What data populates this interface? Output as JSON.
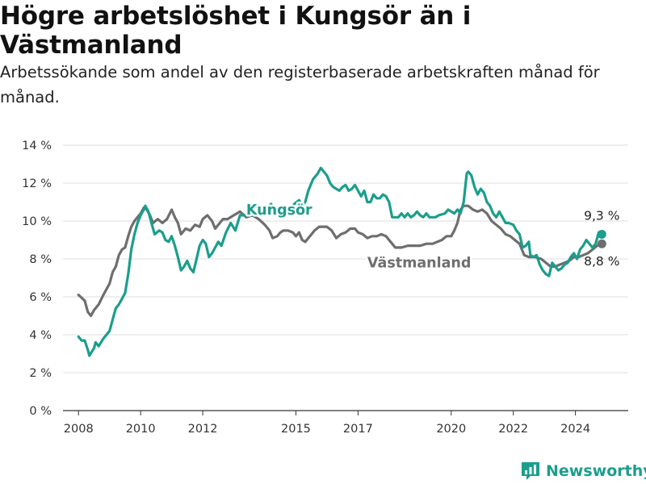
{
  "title": "Högre arbetslöshet i Kungsör än i Västmanland",
  "subtitle": "Arbetssökande som andel av den registerbaserade arbetskraften månad för månad.",
  "brand": "Newsworthy",
  "colors": {
    "kungsor": "#1b9e8c",
    "vastmanland": "#6e6e6e",
    "grid": "#dcdcdc",
    "axis": "#333333",
    "brand": "#1b9e8c"
  },
  "chart_data": {
    "type": "line",
    "x_unit": "year (monthly data)",
    "xlim": [
      2007.5,
      2025.7
    ],
    "ylim": [
      0,
      14
    ],
    "y_ticks": [
      {
        "value": 0,
        "label": "0 %"
      },
      {
        "value": 2,
        "label": "2 %"
      },
      {
        "value": 4,
        "label": "4 %"
      },
      {
        "value": 6,
        "label": "6 %"
      },
      {
        "value": 8,
        "label": "8 %"
      },
      {
        "value": 10,
        "label": "10 %"
      },
      {
        "value": 12,
        "label": "12 %"
      },
      {
        "value": 14,
        "label": "14 %"
      }
    ],
    "x_ticks": [
      {
        "value": 2008,
        "label": "2008"
      },
      {
        "value": 2010,
        "label": "2010"
      },
      {
        "value": 2012,
        "label": "2012"
      },
      {
        "value": 2015,
        "label": "2015"
      },
      {
        "value": 2017,
        "label": "2017"
      },
      {
        "value": 2020,
        "label": "2020"
      },
      {
        "value": 2022,
        "label": "2022"
      },
      {
        "value": 2024,
        "label": "2024"
      }
    ],
    "grid": true,
    "series": [
      {
        "name": "Kungsör",
        "color": "#1b9e8c",
        "label": "Kungsör",
        "end_label": "9,3 %",
        "end_value": 9.3,
        "points": [
          [
            2008.0,
            3.9
          ],
          [
            2008.1,
            3.7
          ],
          [
            2008.2,
            3.7
          ],
          [
            2008.3,
            3.2
          ],
          [
            2008.35,
            2.9
          ],
          [
            2008.5,
            3.3
          ],
          [
            2008.55,
            3.6
          ],
          [
            2008.65,
            3.4
          ],
          [
            2008.8,
            3.8
          ],
          [
            2008.9,
            4.0
          ],
          [
            2009.0,
            4.2
          ],
          [
            2009.1,
            4.8
          ],
          [
            2009.2,
            5.4
          ],
          [
            2009.3,
            5.6
          ],
          [
            2009.4,
            5.9
          ],
          [
            2009.5,
            6.2
          ],
          [
            2009.6,
            7.2
          ],
          [
            2009.7,
            8.5
          ],
          [
            2009.8,
            9.3
          ],
          [
            2009.9,
            9.9
          ],
          [
            2010.0,
            10.3
          ],
          [
            2010.1,
            10.6
          ],
          [
            2010.15,
            10.8
          ],
          [
            2010.25,
            10.5
          ],
          [
            2010.35,
            9.9
          ],
          [
            2010.45,
            9.3
          ],
          [
            2010.6,
            9.5
          ],
          [
            2010.7,
            9.4
          ],
          [
            2010.8,
            9.0
          ],
          [
            2010.9,
            8.9
          ],
          [
            2011.0,
            9.2
          ],
          [
            2011.1,
            8.7
          ],
          [
            2011.2,
            8.1
          ],
          [
            2011.3,
            7.4
          ],
          [
            2011.4,
            7.6
          ],
          [
            2011.5,
            7.9
          ],
          [
            2011.6,
            7.5
          ],
          [
            2011.7,
            7.3
          ],
          [
            2011.8,
            8.0
          ],
          [
            2011.9,
            8.7
          ],
          [
            2012.0,
            9.0
          ],
          [
            2012.1,
            8.8
          ],
          [
            2012.2,
            8.1
          ],
          [
            2012.3,
            8.3
          ],
          [
            2012.4,
            8.6
          ],
          [
            2012.5,
            8.9
          ],
          [
            2012.6,
            8.7
          ],
          [
            2012.75,
            9.4
          ],
          [
            2012.9,
            9.9
          ],
          [
            2013.05,
            9.5
          ],
          [
            2013.2,
            10.3
          ],
          [
            2013.45,
            10.3
          ],
          [
            2013.7,
            10.3
          ],
          [
            2014.0,
            10.6
          ],
          [
            2014.2,
            10.9
          ],
          [
            2014.35,
            10.4
          ],
          [
            2014.5,
            10.2
          ],
          [
            2014.6,
            10.5
          ],
          [
            2014.8,
            10.6
          ],
          [
            2014.95,
            10.9
          ],
          [
            2015.1,
            11.1
          ],
          [
            2015.2,
            10.8
          ],
          [
            2015.3,
            11.0
          ],
          [
            2015.4,
            11.6
          ],
          [
            2015.55,
            12.2
          ],
          [
            2015.7,
            12.5
          ],
          [
            2015.8,
            12.8
          ],
          [
            2015.9,
            12.6
          ],
          [
            2016.0,
            12.4
          ],
          [
            2016.1,
            12.0
          ],
          [
            2016.2,
            11.8
          ],
          [
            2016.3,
            11.7
          ],
          [
            2016.4,
            11.6
          ],
          [
            2016.5,
            11.8
          ],
          [
            2016.6,
            11.9
          ],
          [
            2016.7,
            11.6
          ],
          [
            2016.8,
            11.7
          ],
          [
            2016.9,
            11.9
          ],
          [
            2017.0,
            11.6
          ],
          [
            2017.1,
            11.3
          ],
          [
            2017.2,
            11.6
          ],
          [
            2017.3,
            11.0
          ],
          [
            2017.4,
            11.0
          ],
          [
            2017.5,
            11.4
          ],
          [
            2017.6,
            11.2
          ],
          [
            2017.7,
            11.2
          ],
          [
            2017.8,
            11.4
          ],
          [
            2017.9,
            11.3
          ],
          [
            2018.0,
            11.0
          ],
          [
            2018.1,
            10.2
          ],
          [
            2018.3,
            10.2
          ],
          [
            2018.4,
            10.4
          ],
          [
            2018.5,
            10.2
          ],
          [
            2018.6,
            10.4
          ],
          [
            2018.7,
            10.2
          ],
          [
            2018.8,
            10.3
          ],
          [
            2018.9,
            10.5
          ],
          [
            2019.0,
            10.3
          ],
          [
            2019.1,
            10.2
          ],
          [
            2019.2,
            10.4
          ],
          [
            2019.3,
            10.2
          ],
          [
            2019.5,
            10.2
          ],
          [
            2019.6,
            10.3
          ],
          [
            2019.8,
            10.4
          ],
          [
            2019.9,
            10.6
          ],
          [
            2020.0,
            10.5
          ],
          [
            2020.1,
            10.4
          ],
          [
            2020.2,
            10.6
          ],
          [
            2020.3,
            10.4
          ],
          [
            2020.4,
            11.0
          ],
          [
            2020.5,
            12.5
          ],
          [
            2020.55,
            12.6
          ],
          [
            2020.65,
            12.4
          ],
          [
            2020.75,
            11.8
          ],
          [
            2020.85,
            11.4
          ],
          [
            2020.95,
            11.7
          ],
          [
            2021.05,
            11.5
          ],
          [
            2021.15,
            11.0
          ],
          [
            2021.25,
            10.8
          ],
          [
            2021.35,
            10.4
          ],
          [
            2021.45,
            10.2
          ],
          [
            2021.55,
            10.5
          ],
          [
            2021.65,
            10.2
          ],
          [
            2021.75,
            9.9
          ],
          [
            2021.85,
            9.9
          ],
          [
            2022.0,
            9.8
          ],
          [
            2022.1,
            9.5
          ],
          [
            2022.2,
            9.3
          ],
          [
            2022.3,
            8.6
          ],
          [
            2022.4,
            8.7
          ],
          [
            2022.5,
            8.9
          ],
          [
            2022.55,
            8.2
          ],
          [
            2022.65,
            8.1
          ],
          [
            2022.75,
            8.2
          ],
          [
            2022.85,
            7.7
          ],
          [
            2022.95,
            7.4
          ],
          [
            2023.05,
            7.2
          ],
          [
            2023.15,
            7.1
          ],
          [
            2023.25,
            7.8
          ],
          [
            2023.35,
            7.6
          ],
          [
            2023.45,
            7.4
          ],
          [
            2023.55,
            7.5
          ],
          [
            2023.65,
            7.7
          ],
          [
            2023.75,
            7.8
          ],
          [
            2023.85,
            8.1
          ],
          [
            2023.95,
            8.3
          ],
          [
            2024.05,
            8.0
          ],
          [
            2024.15,
            8.5
          ],
          [
            2024.25,
            8.7
          ],
          [
            2024.35,
            9.0
          ],
          [
            2024.45,
            8.8
          ],
          [
            2024.55,
            8.6
          ],
          [
            2024.65,
            8.8
          ],
          [
            2024.75,
            9.4
          ],
          [
            2024.85,
            9.3
          ]
        ]
      },
      {
        "name": "Västmanland",
        "color": "#6e6e6e",
        "label": "Västmanland",
        "end_label": "8,8 %",
        "end_value": 8.8,
        "points": [
          [
            2008.0,
            6.1
          ],
          [
            2008.2,
            5.8
          ],
          [
            2008.3,
            5.2
          ],
          [
            2008.4,
            5.0
          ],
          [
            2008.5,
            5.3
          ],
          [
            2008.65,
            5.6
          ],
          [
            2008.8,
            6.1
          ],
          [
            2009.0,
            6.7
          ],
          [
            2009.1,
            7.3
          ],
          [
            2009.2,
            7.6
          ],
          [
            2009.3,
            8.2
          ],
          [
            2009.4,
            8.5
          ],
          [
            2009.5,
            8.6
          ],
          [
            2009.6,
            9.2
          ],
          [
            2009.7,
            9.7
          ],
          [
            2009.8,
            10.0
          ],
          [
            2009.9,
            10.2
          ],
          [
            2010.0,
            10.4
          ],
          [
            2010.1,
            10.7
          ],
          [
            2010.2,
            10.6
          ],
          [
            2010.3,
            10.3
          ],
          [
            2010.4,
            9.9
          ],
          [
            2010.55,
            10.1
          ],
          [
            2010.7,
            9.9
          ],
          [
            2010.85,
            10.1
          ],
          [
            2011.0,
            10.6
          ],
          [
            2011.1,
            10.2
          ],
          [
            2011.2,
            9.9
          ],
          [
            2011.3,
            9.3
          ],
          [
            2011.45,
            9.6
          ],
          [
            2011.6,
            9.5
          ],
          [
            2011.75,
            9.8
          ],
          [
            2011.9,
            9.7
          ],
          [
            2012.0,
            10.1
          ],
          [
            2012.15,
            10.3
          ],
          [
            2012.3,
            10.0
          ],
          [
            2012.4,
            9.6
          ],
          [
            2012.5,
            9.8
          ],
          [
            2012.65,
            10.1
          ],
          [
            2012.8,
            10.1
          ],
          [
            2013.0,
            10.3
          ],
          [
            2013.2,
            10.5
          ],
          [
            2013.4,
            10.2
          ],
          [
            2013.6,
            10.3
          ],
          [
            2013.8,
            10.1
          ],
          [
            2014.0,
            9.8
          ],
          [
            2014.15,
            9.5
          ],
          [
            2014.25,
            9.1
          ],
          [
            2014.4,
            9.2
          ],
          [
            2014.5,
            9.4
          ],
          [
            2014.6,
            9.5
          ],
          [
            2014.75,
            9.5
          ],
          [
            2014.9,
            9.4
          ],
          [
            2015.0,
            9.2
          ],
          [
            2015.1,
            9.4
          ],
          [
            2015.2,
            9.0
          ],
          [
            2015.3,
            8.9
          ],
          [
            2015.45,
            9.2
          ],
          [
            2015.6,
            9.5
          ],
          [
            2015.75,
            9.7
          ],
          [
            2015.9,
            9.7
          ],
          [
            2016.0,
            9.7
          ],
          [
            2016.15,
            9.5
          ],
          [
            2016.3,
            9.1
          ],
          [
            2016.45,
            9.3
          ],
          [
            2016.6,
            9.4
          ],
          [
            2016.75,
            9.6
          ],
          [
            2016.9,
            9.6
          ],
          [
            2017.0,
            9.4
          ],
          [
            2017.15,
            9.3
          ],
          [
            2017.3,
            9.1
          ],
          [
            2017.45,
            9.2
          ],
          [
            2017.6,
            9.2
          ],
          [
            2017.75,
            9.3
          ],
          [
            2017.9,
            9.2
          ],
          [
            2018.0,
            9.0
          ],
          [
            2018.1,
            8.8
          ],
          [
            2018.2,
            8.6
          ],
          [
            2018.4,
            8.6
          ],
          [
            2018.6,
            8.7
          ],
          [
            2018.8,
            8.7
          ],
          [
            2019.0,
            8.7
          ],
          [
            2019.2,
            8.8
          ],
          [
            2019.4,
            8.8
          ],
          [
            2019.55,
            8.9
          ],
          [
            2019.7,
            9.0
          ],
          [
            2019.85,
            9.2
          ],
          [
            2020.0,
            9.2
          ],
          [
            2020.1,
            9.5
          ],
          [
            2020.2,
            9.9
          ],
          [
            2020.3,
            10.6
          ],
          [
            2020.4,
            10.8
          ],
          [
            2020.55,
            10.8
          ],
          [
            2020.7,
            10.6
          ],
          [
            2020.85,
            10.5
          ],
          [
            2021.0,
            10.6
          ],
          [
            2021.15,
            10.4
          ],
          [
            2021.3,
            10.0
          ],
          [
            2021.45,
            9.8
          ],
          [
            2021.6,
            9.6
          ],
          [
            2021.75,
            9.3
          ],
          [
            2021.9,
            9.2
          ],
          [
            2022.05,
            9.0
          ],
          [
            2022.2,
            8.8
          ],
          [
            2022.35,
            8.2
          ],
          [
            2022.5,
            8.1
          ],
          [
            2022.7,
            8.1
          ],
          [
            2022.9,
            8.0
          ],
          [
            2023.05,
            7.8
          ],
          [
            2023.2,
            7.6
          ],
          [
            2023.35,
            7.6
          ],
          [
            2023.5,
            7.7
          ],
          [
            2023.65,
            7.8
          ],
          [
            2023.8,
            7.9
          ],
          [
            2023.95,
            8.1
          ],
          [
            2024.1,
            8.1
          ],
          [
            2024.25,
            8.2
          ],
          [
            2024.4,
            8.3
          ],
          [
            2024.55,
            8.5
          ],
          [
            2024.7,
            8.7
          ],
          [
            2024.85,
            8.8
          ]
        ]
      }
    ]
  }
}
